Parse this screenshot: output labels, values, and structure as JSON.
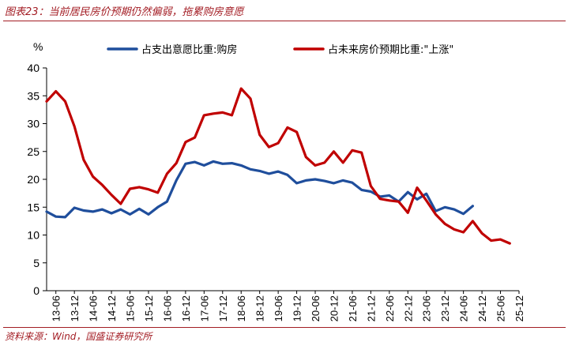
{
  "figure": {
    "title": "图表23：当前居民房价预期仍然偏弱，拖累购房意愿",
    "source": "资料来源：Wind，国盛证券研究所"
  },
  "chart_data": {
    "type": "line",
    "ylabel": "%",
    "xlabel": "",
    "ylim": [
      0,
      40
    ],
    "yticks": [
      0,
      5,
      10,
      15,
      20,
      25,
      30,
      35,
      40
    ],
    "xticks": [
      "13-06",
      "13-12",
      "14-06",
      "14-12",
      "15-06",
      "15-12",
      "16-06",
      "16-12",
      "17-06",
      "17-12",
      "18-06",
      "18-12",
      "19-06",
      "19-12",
      "20-06",
      "20-12",
      "21-06",
      "21-12",
      "22-06",
      "22-12",
      "23-06",
      "23-12",
      "24-06",
      "24-12",
      "25-06",
      "25-12"
    ],
    "legend_position": "top",
    "grid": false,
    "x_start": "2013-03",
    "x_end": "2025-12",
    "series": [
      {
        "name": "占支出意愿比重:购房",
        "color": "#1f4e9c",
        "points": [
          [
            "2013-03",
            14.2
          ],
          [
            "2013-06",
            13.3
          ],
          [
            "2013-09",
            13.2
          ],
          [
            "2013-12",
            14.9
          ],
          [
            "2014-03",
            14.4
          ],
          [
            "2014-06",
            14.2
          ],
          [
            "2014-09",
            14.6
          ],
          [
            "2014-12",
            13.9
          ],
          [
            "2015-03",
            14.6
          ],
          [
            "2015-06",
            13.7
          ],
          [
            "2015-09",
            14.7
          ],
          [
            "2015-12",
            13.7
          ],
          [
            "2016-03",
            15.0
          ],
          [
            "2016-06",
            16.0
          ],
          [
            "2016-09",
            19.8
          ],
          [
            "2016-12",
            22.8
          ],
          [
            "2017-03",
            23.1
          ],
          [
            "2017-06",
            22.5
          ],
          [
            "2017-09",
            23.2
          ],
          [
            "2017-12",
            22.8
          ],
          [
            "2018-03",
            22.9
          ],
          [
            "2018-06",
            22.5
          ],
          [
            "2018-09",
            21.8
          ],
          [
            "2018-12",
            21.5
          ],
          [
            "2019-03",
            21.0
          ],
          [
            "2019-06",
            21.4
          ],
          [
            "2019-09",
            20.8
          ],
          [
            "2019-12",
            19.3
          ],
          [
            "2020-03",
            19.8
          ],
          [
            "2020-06",
            20.0
          ],
          [
            "2020-09",
            19.7
          ],
          [
            "2020-12",
            19.3
          ],
          [
            "2021-03",
            19.8
          ],
          [
            "2021-06",
            19.4
          ],
          [
            "2021-09",
            18.1
          ],
          [
            "2021-12",
            17.8
          ],
          [
            "2022-03",
            16.9
          ],
          [
            "2022-06",
            17.1
          ],
          [
            "2022-09",
            16.0
          ],
          [
            "2022-12",
            17.7
          ],
          [
            "2023-03",
            16.4
          ],
          [
            "2023-06",
            17.4
          ],
          [
            "2023-09",
            14.3
          ],
          [
            "2023-12",
            15.0
          ],
          [
            "2024-03",
            14.6
          ],
          [
            "2024-06",
            13.8
          ],
          [
            "2024-09",
            15.2
          ]
        ]
      },
      {
        "name": "占未来房价预期比重:\"上涨\"",
        "color": "#c00000",
        "points": [
          [
            "2013-03",
            34.0
          ],
          [
            "2013-06",
            35.8
          ],
          [
            "2013-09",
            34.0
          ],
          [
            "2013-12",
            29.5
          ],
          [
            "2014-03",
            23.5
          ],
          [
            "2014-06",
            20.5
          ],
          [
            "2014-09",
            19.0
          ],
          [
            "2014-12",
            17.2
          ],
          [
            "2015-03",
            15.6
          ],
          [
            "2015-06",
            18.3
          ],
          [
            "2015-09",
            18.6
          ],
          [
            "2015-12",
            18.2
          ],
          [
            "2016-03",
            17.6
          ],
          [
            "2016-06",
            21.0
          ],
          [
            "2016-09",
            22.9
          ],
          [
            "2016-12",
            26.7
          ],
          [
            "2017-03",
            27.5
          ],
          [
            "2017-06",
            31.5
          ],
          [
            "2017-09",
            31.8
          ],
          [
            "2017-12",
            32.0
          ],
          [
            "2018-03",
            31.5
          ],
          [
            "2018-06",
            36.3
          ],
          [
            "2018-09",
            34.5
          ],
          [
            "2018-12",
            28.0
          ],
          [
            "2019-03",
            25.8
          ],
          [
            "2019-06",
            26.5
          ],
          [
            "2019-09",
            29.3
          ],
          [
            "2019-12",
            28.5
          ],
          [
            "2020-03",
            24.0
          ],
          [
            "2020-06",
            22.5
          ],
          [
            "2020-09",
            23.0
          ],
          [
            "2020-12",
            25.0
          ],
          [
            "2021-03",
            23.0
          ],
          [
            "2021-06",
            25.2
          ],
          [
            "2021-09",
            24.8
          ],
          [
            "2021-12",
            18.8
          ],
          [
            "2022-03",
            16.5
          ],
          [
            "2022-06",
            16.2
          ],
          [
            "2022-09",
            16.0
          ],
          [
            "2022-12",
            14.0
          ],
          [
            "2023-03",
            18.5
          ],
          [
            "2023-06",
            16.2
          ],
          [
            "2023-09",
            13.7
          ],
          [
            "2023-12",
            12.0
          ],
          [
            "2024-03",
            11.0
          ],
          [
            "2024-06",
            10.5
          ],
          [
            "2024-09",
            12.5
          ],
          [
            "2024-12",
            10.3
          ],
          [
            "2025-03",
            9.0
          ],
          [
            "2025-06",
            9.2
          ],
          [
            "2025-09",
            8.5
          ]
        ]
      }
    ]
  }
}
